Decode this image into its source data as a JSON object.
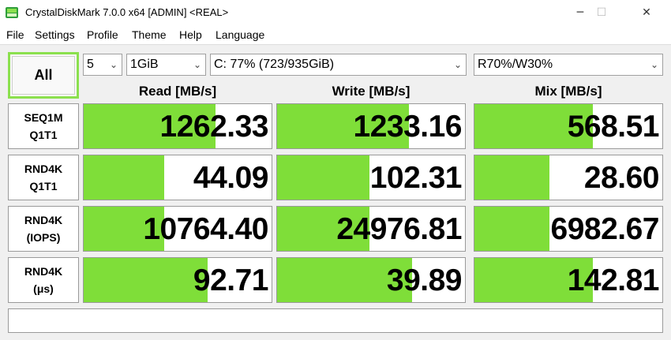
{
  "window": {
    "title": "CrystalDiskMark 7.0.0 x64 [ADMIN] <REAL>",
    "minimize_glyph": "─",
    "maximize_glyph": "☐",
    "close_glyph": "✕"
  },
  "menu": [
    "File",
    "Settings",
    "Profile",
    "Theme",
    "Help",
    "Language"
  ],
  "controls": {
    "all_label": "All",
    "count": "5",
    "size": "1GiB",
    "drive": "C: 77% (723/935GiB)",
    "mix": "R70%/W30%"
  },
  "headers": {
    "read": "Read [MB/s]",
    "write": "Write [MB/s]",
    "mix": "Mix [MB/s]"
  },
  "rows": [
    {
      "label1": "SEQ1M",
      "label2": "Q1T1",
      "read": "1262.33",
      "write": "1233.16",
      "mix": "568.51",
      "read_fill": 0.7,
      "write_fill": 0.7,
      "mix_fill": 0.63
    },
    {
      "label1": "RND4K",
      "label2": "Q1T1",
      "read": "44.09",
      "write": "102.31",
      "mix": "28.60",
      "read_fill": 0.43,
      "write_fill": 0.49,
      "mix_fill": 0.4
    },
    {
      "label1": "RND4K",
      "label2": "(IOPS)",
      "read": "10764.40",
      "write": "24976.81",
      "mix": "6982.67",
      "read_fill": 0.43,
      "write_fill": 0.49,
      "mix_fill": 0.4
    },
    {
      "label1": "RND4K",
      "label2": "(μs)",
      "read": "92.71",
      "write": "39.89",
      "mix": "142.81",
      "read_fill": 0.66,
      "write_fill": 0.72,
      "mix_fill": 0.63
    }
  ],
  "colors": {
    "bar": "#7fde39",
    "accent": "#8be04e"
  }
}
